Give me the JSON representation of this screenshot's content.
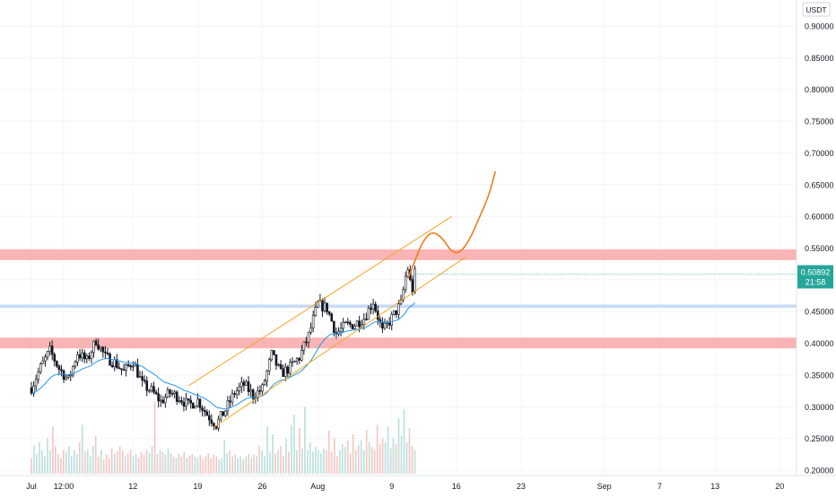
{
  "chart_data": {
    "type": "candlestick",
    "currency": "USDT",
    "y_range": [
      0.195,
      0.925
    ],
    "y_ticks": [
      "0.90000",
      "0.85000",
      "0.80000",
      "0.75000",
      "0.70000",
      "0.65000",
      "0.60000",
      "0.55000",
      "0.50000",
      "0.45000",
      "0.40000",
      "0.35000",
      "0.30000",
      "0.25000",
      "0.20000"
    ],
    "x_labels": [
      {
        "label": "Jul",
        "day": 0
      },
      {
        "label": "12:00",
        "day": 3.5
      },
      {
        "label": "12",
        "day": 11
      },
      {
        "label": "19",
        "day": 18
      },
      {
        "label": "26",
        "day": 25
      },
      {
        "label": "Aug",
        "day": 31
      },
      {
        "label": "9",
        "day": 39
      },
      {
        "label": "16",
        "day": 46
      },
      {
        "label": "23",
        "day": 53
      },
      {
        "label": "Sep",
        "day": 62
      },
      {
        "label": "7",
        "day": 68
      },
      {
        "label": "13",
        "day": 74
      },
      {
        "label": "20",
        "day": 81
      }
    ],
    "last_price": {
      "value": 0.50892,
      "label": "0.50892",
      "countdown": "21:58"
    },
    "zones": [
      {
        "name": "resistance",
        "from": 0.531,
        "to": 0.548,
        "color": "#f8a8a8"
      },
      {
        "name": "level",
        "from": 0.456,
        "to": 0.461,
        "color": "#bcd3f3"
      },
      {
        "name": "support",
        "from": 0.392,
        "to": 0.409,
        "color": "#f8a8a8"
      }
    ],
    "channel": {
      "upper": {
        "from": [
          17,
          0.333
        ],
        "to": [
          45.5,
          0.6
        ]
      },
      "lower": {
        "from": [
          19.7,
          0.267
        ],
        "to": [
          47,
          0.536
        ]
      }
    },
    "projection": [
      [
        40.8,
        0.503
      ],
      [
        41.5,
        0.53
      ],
      [
        42.4,
        0.562
      ],
      [
        43.4,
        0.577
      ],
      [
        44.5,
        0.566
      ],
      [
        45.4,
        0.545
      ],
      [
        46.3,
        0.541
      ],
      [
        47.4,
        0.562
      ],
      [
        48.4,
        0.595
      ],
      [
        49.5,
        0.632
      ],
      [
        50.2,
        0.67
      ]
    ],
    "ema_color": "#2196f3",
    "bull_color": "#26a69a",
    "bear_color": "#ef5350",
    "wick_color": "#131722",
    "channel_color": "#f5a623",
    "projection_color": "#ef7d1a",
    "price_path": [
      [
        0,
        0.33
      ],
      [
        1,
        0.362
      ],
      [
        2,
        0.388
      ],
      [
        3,
        0.36
      ],
      [
        4,
        0.342
      ],
      [
        5,
        0.385
      ],
      [
        6,
        0.372
      ],
      [
        7,
        0.405
      ],
      [
        8,
        0.378
      ],
      [
        9,
        0.37
      ],
      [
        10,
        0.355
      ],
      [
        11,
        0.372
      ],
      [
        12,
        0.335
      ],
      [
        13,
        0.325
      ],
      [
        14,
        0.308
      ],
      [
        15,
        0.322
      ],
      [
        16,
        0.315
      ],
      [
        17,
        0.302
      ],
      [
        18,
        0.31
      ],
      [
        19,
        0.288
      ],
      [
        20,
        0.272
      ],
      [
        21,
        0.295
      ],
      [
        22,
        0.322
      ],
      [
        23,
        0.335
      ],
      [
        24,
        0.318
      ],
      [
        25,
        0.328
      ],
      [
        26,
        0.382
      ],
      [
        27,
        0.352
      ],
      [
        28,
        0.362
      ],
      [
        29,
        0.378
      ],
      [
        30,
        0.412
      ],
      [
        31,
        0.462
      ],
      [
        32,
        0.455
      ],
      [
        33,
        0.415
      ],
      [
        34,
        0.428
      ],
      [
        35,
        0.43
      ],
      [
        36,
        0.44
      ],
      [
        37,
        0.466
      ],
      [
        38,
        0.418
      ],
      [
        39,
        0.44
      ],
      [
        40,
        0.462
      ],
      [
        40.7,
        0.522
      ],
      [
        41.2,
        0.48
      ],
      [
        41.5,
        0.509
      ]
    ],
    "volume_range": [
      0,
      1
    ],
    "volumes": [
      0.2,
      0.35,
      0.25,
      0.4,
      0.3,
      0.22,
      0.45,
      0.3,
      0.6,
      0.35,
      0.25,
      0.2,
      0.3,
      0.28,
      0.35,
      0.22,
      0.3,
      0.25,
      0.4,
      0.62,
      0.28,
      0.3,
      0.22,
      0.35,
      0.48,
      0.22,
      0.3,
      0.18,
      0.25,
      0.2,
      0.32,
      0.25,
      0.28,
      0.35,
      0.3,
      0.22,
      0.26,
      0.3,
      0.22,
      0.25,
      0.2,
      0.28,
      0.24,
      0.3,
      0.26,
      0.35,
      0.92,
      0.25,
      0.3,
      0.28,
      0.24,
      0.32,
      0.26,
      0.22,
      0.2,
      0.25,
      0.22,
      0.28,
      0.2,
      0.23,
      0.25,
      0.22,
      0.2,
      0.24,
      0.18,
      0.22,
      0.26,
      0.2,
      0.24,
      0.22,
      0.18,
      0.2,
      0.42,
      0.26,
      0.3,
      0.22,
      0.24,
      0.2,
      0.22,
      0.18,
      0.22,
      0.25,
      0.2,
      0.24,
      0.22,
      0.35,
      0.3,
      0.22,
      0.6,
      0.28,
      0.5,
      0.26,
      0.3,
      0.35,
      0.22,
      0.45,
      0.28,
      0.62,
      0.75,
      0.3,
      0.58,
      0.32,
      0.85,
      0.3,
      0.4,
      0.28,
      0.34,
      0.3,
      0.26,
      0.32,
      0.3,
      0.55,
      0.28,
      0.45,
      0.22,
      0.3,
      0.38,
      0.34,
      0.42,
      0.26,
      0.5,
      0.3,
      0.36,
      0.42,
      0.3,
      0.55,
      0.4,
      0.34,
      0.3,
      0.62,
      0.38,
      0.45,
      0.4,
      0.6,
      0.32,
      0.45,
      0.38,
      0.7,
      0.48,
      0.82,
      0.4,
      0.58,
      0.35,
      0.3
    ]
  }
}
